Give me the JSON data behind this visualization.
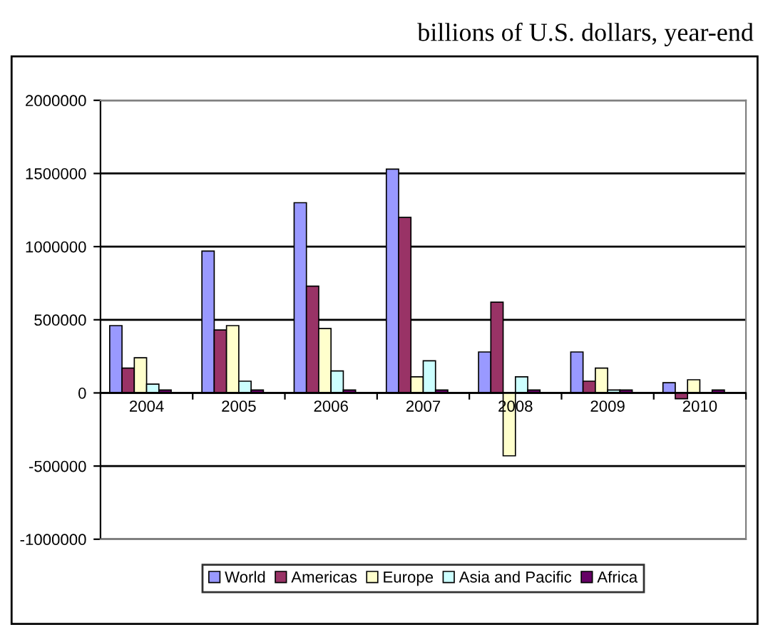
{
  "chart_data": {
    "type": "bar",
    "title": "billions of U.S. dollars, year-end",
    "categories": [
      "2004",
      "2005",
      "2006",
      "2007",
      "2008",
      "2009",
      "2010"
    ],
    "series": [
      {
        "name": "World",
        "color": "#9999ff",
        "values": [
          460000,
          970000,
          1300000,
          1530000,
          280000,
          280000,
          70000
        ]
      },
      {
        "name": "Americas",
        "color": "#993366",
        "values": [
          170000,
          430000,
          730000,
          1200000,
          620000,
          80000,
          -40000
        ]
      },
      {
        "name": "Europe",
        "color": "#ffffcc",
        "values": [
          240000,
          460000,
          440000,
          110000,
          -430000,
          170000,
          90000
        ]
      },
      {
        "name": "Asia and Pacific",
        "color": "#ccffff",
        "values": [
          60000,
          80000,
          150000,
          220000,
          110000,
          20000,
          null
        ]
      },
      {
        "name": "Africa",
        "color": "#660066",
        "values": [
          20000,
          20000,
          20000,
          20000,
          20000,
          20000,
          20000
        ]
      }
    ],
    "ylim": [
      -1000000,
      2000000
    ],
    "yticks": [
      -1000000,
      -500000,
      0,
      500000,
      1000000,
      1500000,
      2000000
    ],
    "grid": "y",
    "legend": "bottom"
  }
}
